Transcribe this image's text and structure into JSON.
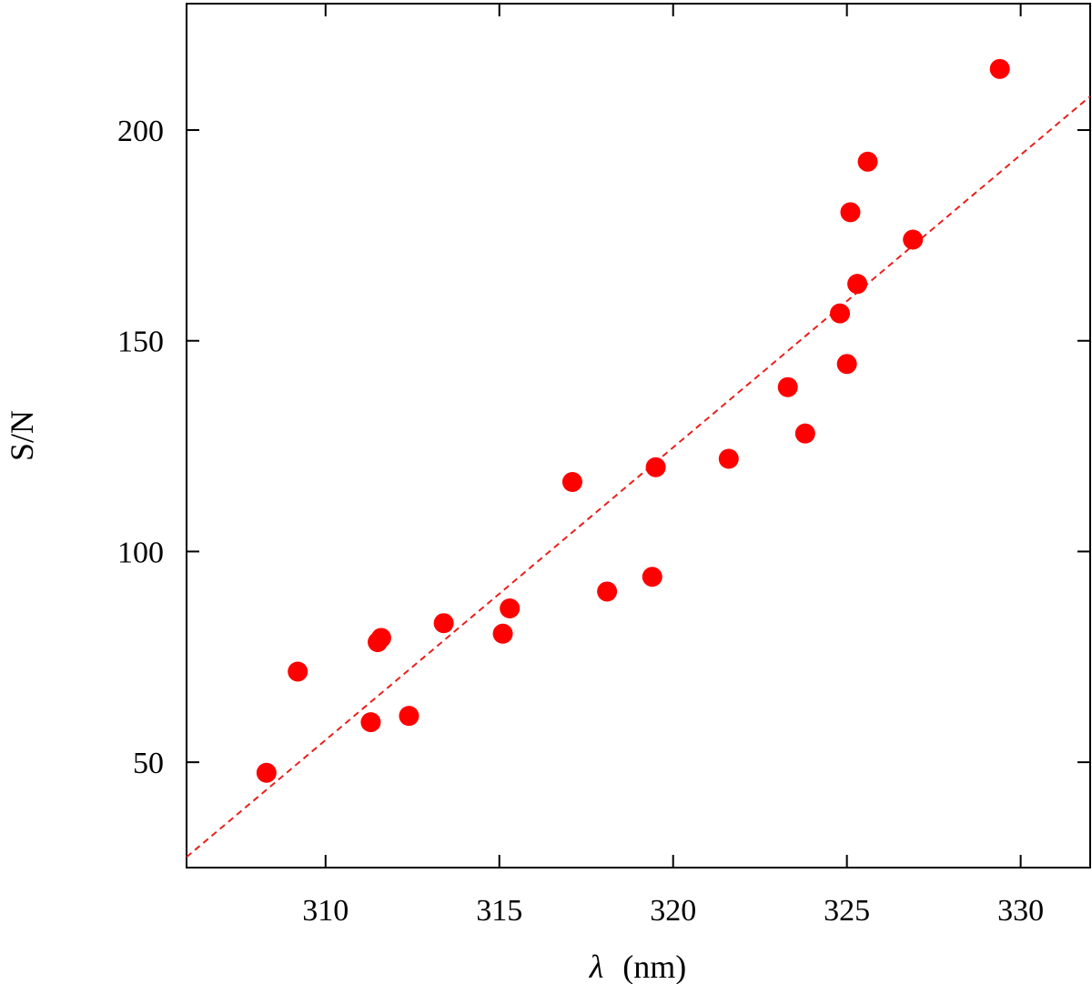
{
  "chart_data": {
    "type": "scatter",
    "xlabel_symbol": "λ",
    "xlabel_unit": "(nm)",
    "ylabel": "S/N",
    "xlim": [
      306,
      332
    ],
    "ylim": [
      25,
      230
    ],
    "x_ticks": [
      310,
      315,
      320,
      325,
      330
    ],
    "y_ticks": [
      50,
      100,
      150,
      200
    ],
    "grid": false,
    "points": [
      {
        "x": 308.3,
        "y": 47.5
      },
      {
        "x": 309.2,
        "y": 71.5
      },
      {
        "x": 311.3,
        "y": 59.5
      },
      {
        "x": 311.5,
        "y": 78.5
      },
      {
        "x": 311.6,
        "y": 79.5
      },
      {
        "x": 312.4,
        "y": 61.0
      },
      {
        "x": 313.4,
        "y": 83.0
      },
      {
        "x": 315.1,
        "y": 80.5
      },
      {
        "x": 315.3,
        "y": 86.5
      },
      {
        "x": 317.1,
        "y": 116.5
      },
      {
        "x": 318.1,
        "y": 90.5
      },
      {
        "x": 319.4,
        "y": 94.0
      },
      {
        "x": 319.5,
        "y": 120.0
      },
      {
        "x": 321.6,
        "y": 122.0
      },
      {
        "x": 323.3,
        "y": 139.0
      },
      {
        "x": 323.8,
        "y": 128.0
      },
      {
        "x": 324.8,
        "y": 156.5
      },
      {
        "x": 325.0,
        "y": 144.5
      },
      {
        "x": 325.1,
        "y": 180.5
      },
      {
        "x": 325.3,
        "y": 163.5
      },
      {
        "x": 325.6,
        "y": 192.5
      },
      {
        "x": 326.9,
        "y": 174.0
      },
      {
        "x": 329.4,
        "y": 214.5
      }
    ],
    "fit_line": {
      "x": [
        306,
        332
      ],
      "y": [
        27.5,
        208.0
      ]
    },
    "colors": {
      "points": "#ff0000",
      "fit_line": "#e8201c",
      "axes": "#000000"
    }
  }
}
